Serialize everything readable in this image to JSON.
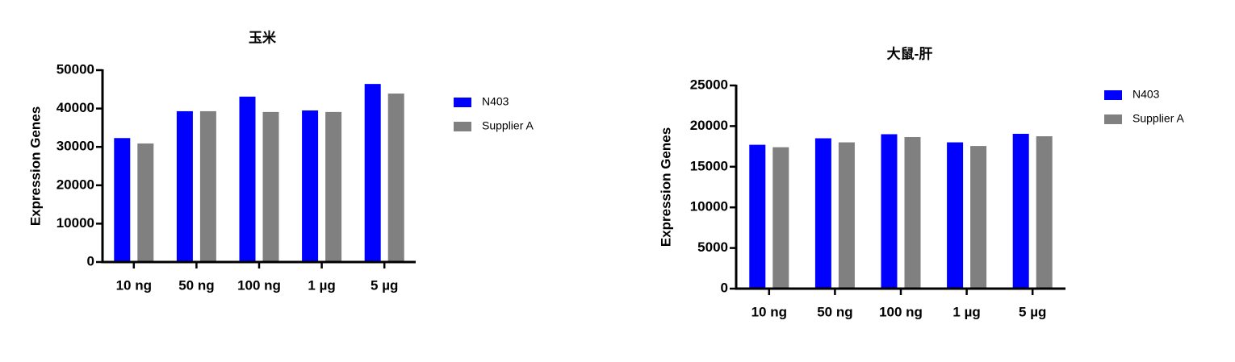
{
  "chart_data": [
    {
      "type": "bar",
      "title": "玉米",
      "y_label": "Expression Genes",
      "categories": [
        "10 ng",
        "50 ng",
        "100 ng",
        "1 µg",
        "5 µg"
      ],
      "series": [
        {
          "name": "N403",
          "color": "#0000ff",
          "values": [
            32300,
            39300,
            43100,
            39500,
            46400
          ]
        },
        {
          "name": "Supplier A",
          "color": "#808080",
          "values": [
            30900,
            39300,
            39100,
            39100,
            43900
          ]
        }
      ],
      "ylim": [
        0,
        50000
      ],
      "yticks": [
        0,
        10000,
        20000,
        30000,
        40000,
        50000
      ]
    },
    {
      "type": "bar",
      "title": "大鼠-肝",
      "y_label": "Expression Genes",
      "categories": [
        "10 ng",
        "50 ng",
        "100 ng",
        "1 µg",
        "5 µg"
      ],
      "series": [
        {
          "name": "N403",
          "color": "#0000ff",
          "values": [
            17700,
            18500,
            19000,
            18000,
            19050
          ]
        },
        {
          "name": "Supplier A",
          "color": "#808080",
          "values": [
            17400,
            18000,
            18650,
            17550,
            18750
          ]
        }
      ],
      "ylim": [
        0,
        25000
      ],
      "yticks": [
        0,
        5000,
        10000,
        15000,
        20000,
        25000
      ]
    }
  ]
}
